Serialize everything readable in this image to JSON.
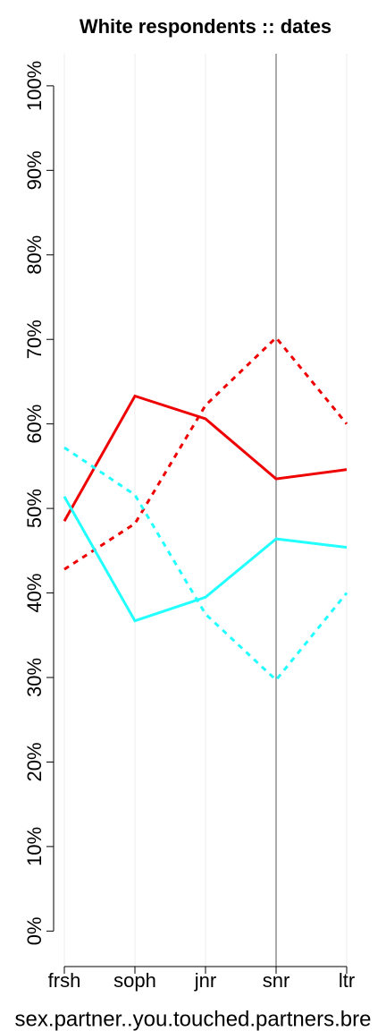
{
  "chart_data": {
    "type": "line",
    "title": "White respondents :: dates",
    "x_label": "sex.partner..you.touched.partners.bre",
    "categories": [
      "frsh",
      "soph",
      "jnr",
      "snr",
      "ltr"
    ],
    "series": [
      {
        "color": "#ee0000",
        "dashed": false,
        "values": [
          48.5,
          63.3,
          60.6,
          53.5,
          54.6
        ]
      },
      {
        "color": "#ee0000",
        "dashed": true,
        "values": [
          42.8,
          48.2,
          62.2,
          70.2,
          60
        ]
      },
      {
        "color": "#22ffff",
        "dashed": false,
        "values": [
          51.4,
          36.7,
          39.5,
          46.4,
          45.4
        ]
      },
      {
        "color": "#22ffff",
        "dashed": true,
        "values": [
          57.2,
          51.6,
          37.5,
          29.7,
          40
        ]
      }
    ],
    "ylim": [
      -4.2,
      103.8
    ],
    "yticks": [
      {
        "value": 0,
        "label": "0%"
      },
      {
        "value": 10,
        "label": "10%"
      },
      {
        "value": 20,
        "label": "20%"
      },
      {
        "value": 30,
        "label": "30%"
      },
      {
        "value": 40,
        "label": "40%"
      },
      {
        "value": 50,
        "label": "50%"
      },
      {
        "value": 60,
        "label": "60%"
      },
      {
        "value": 70,
        "label": "70%"
      },
      {
        "value": 80,
        "label": "80%"
      },
      {
        "value": 90,
        "label": "90%"
      },
      {
        "value": 100,
        "label": "100%"
      }
    ],
    "highlight_category": "snr",
    "grid": true
  }
}
